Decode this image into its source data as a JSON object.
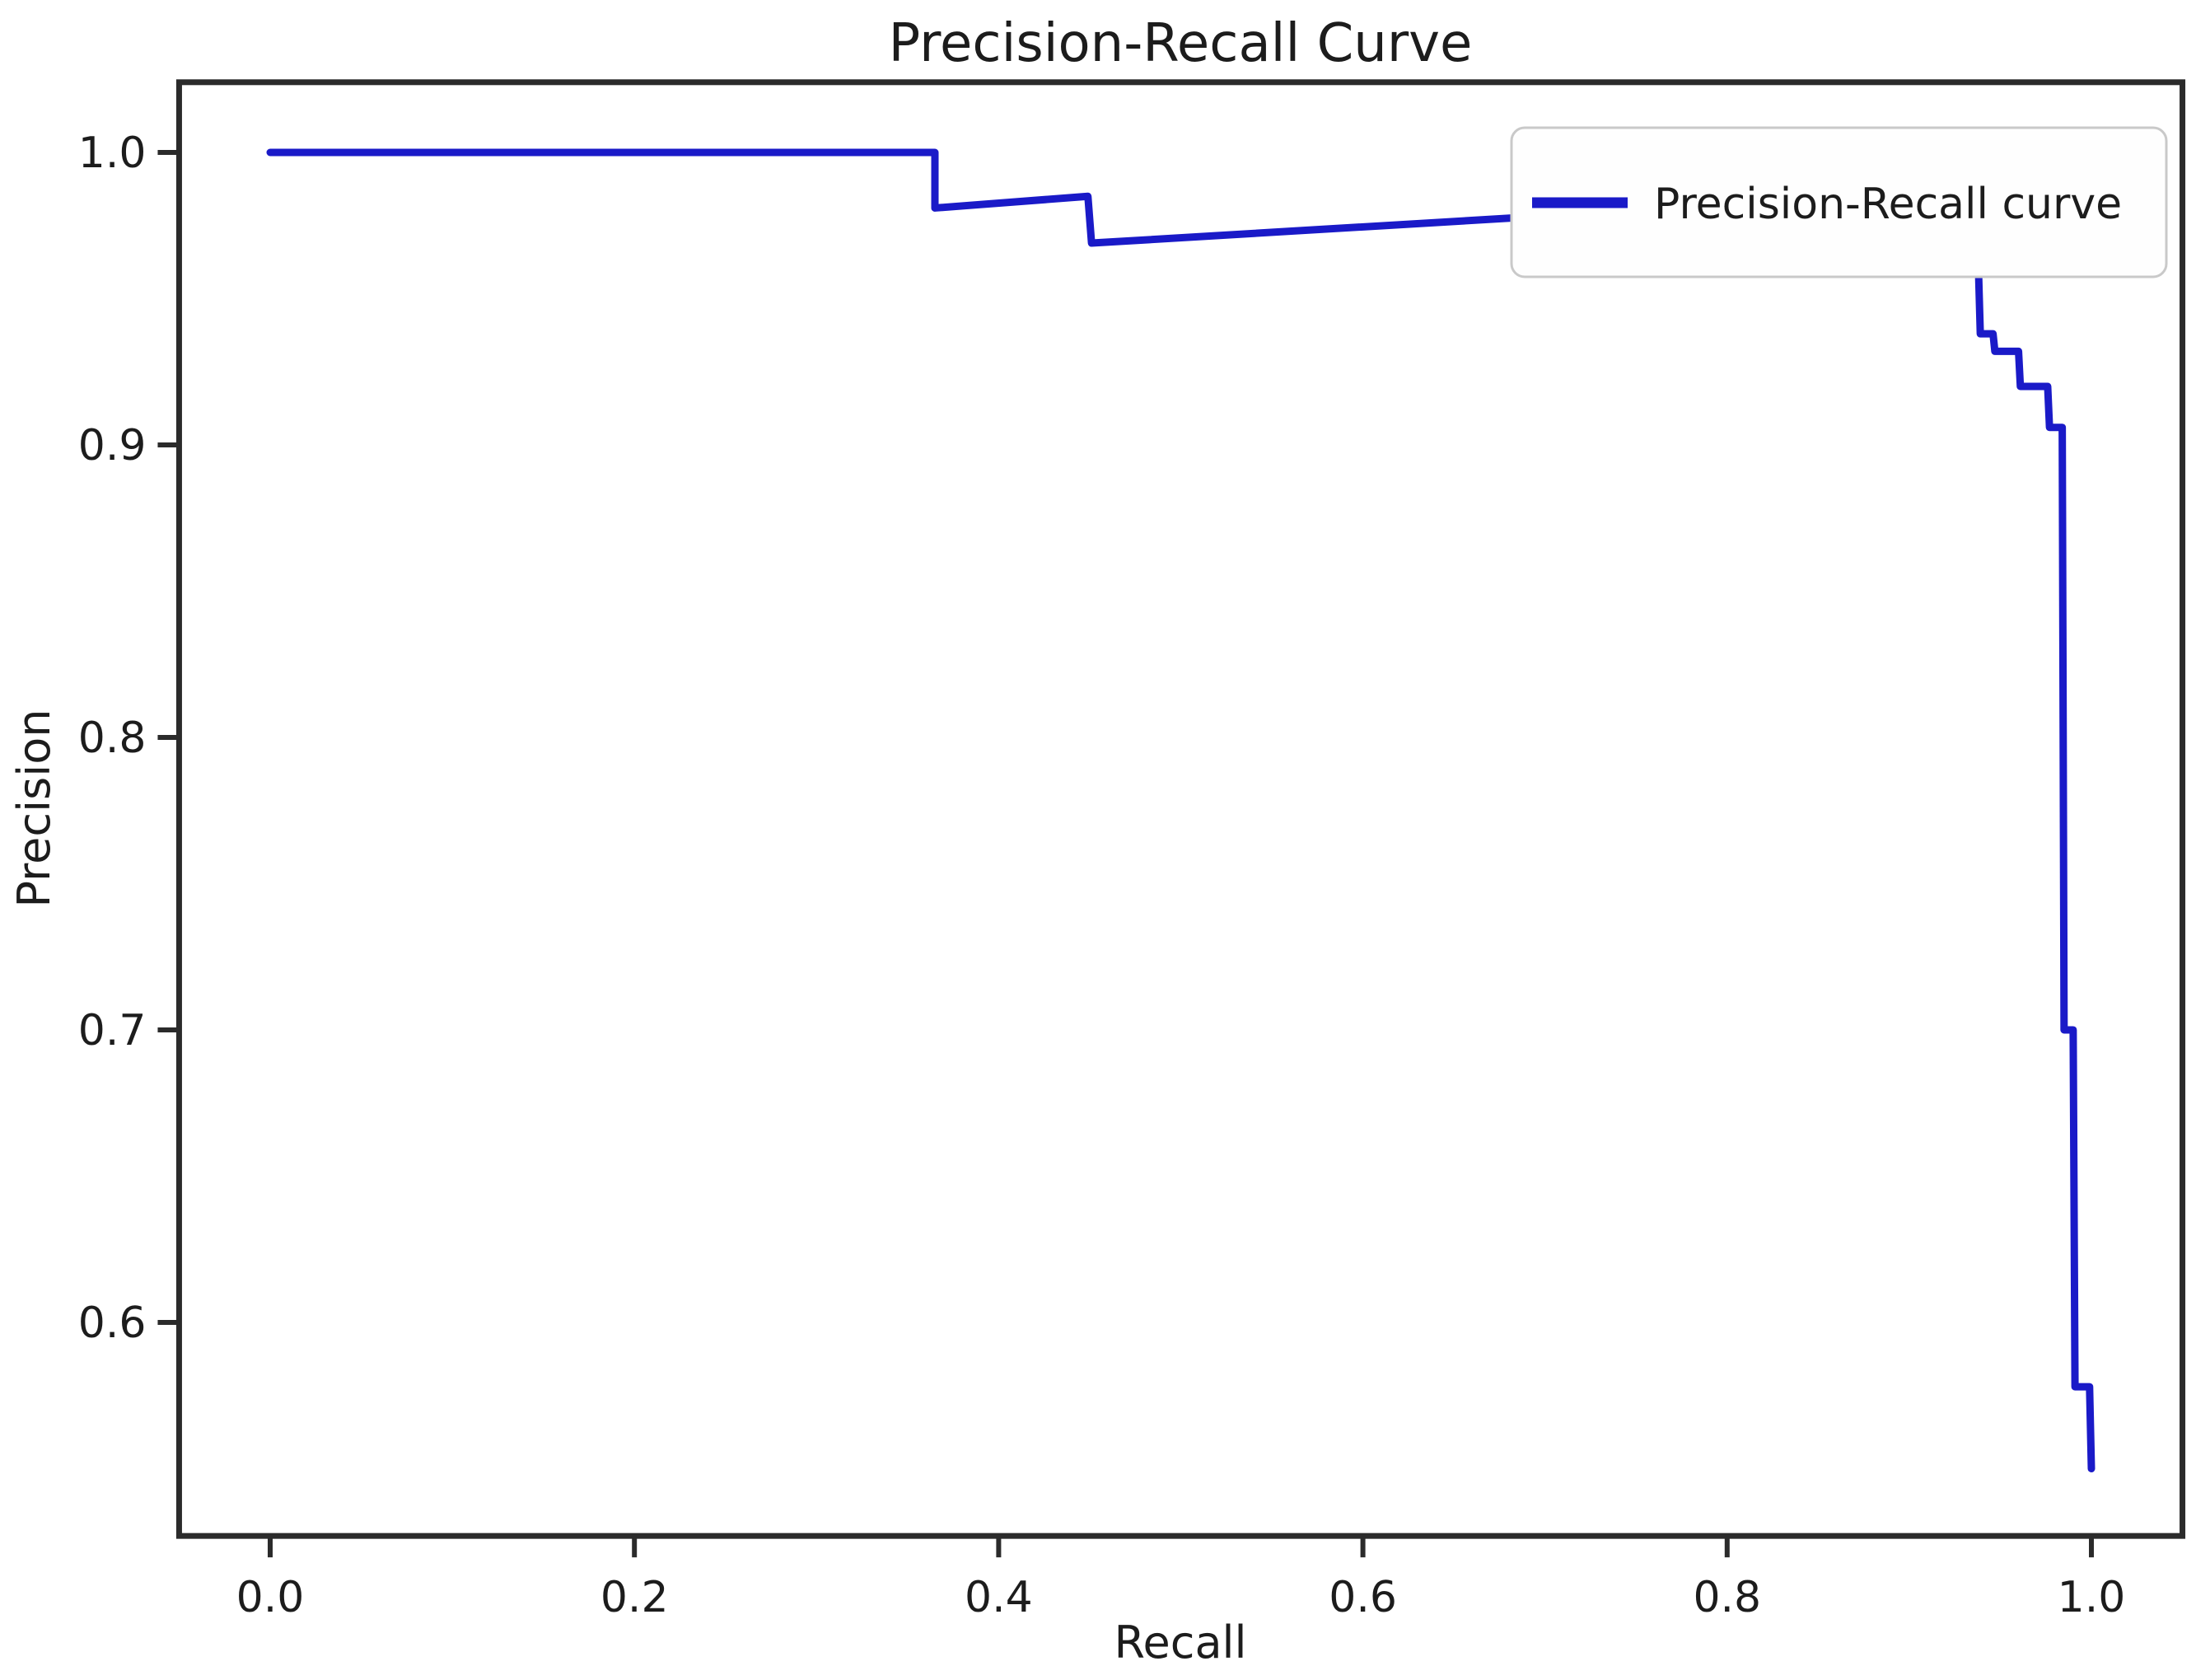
{
  "chart_data": {
    "type": "line",
    "title": "Precision-Recall Curve",
    "xlabel": "Recall",
    "ylabel": "Precision",
    "x_ticks": {
      "labels": [
        "0.0",
        "0.2",
        "0.4",
        "0.6",
        "0.8",
        "1.0"
      ],
      "values": [
        0.0,
        0.2,
        0.4,
        0.6,
        0.8,
        1.0
      ]
    },
    "y_ticks": {
      "labels": [
        "1.0",
        "0.9",
        "0.8",
        "0.7",
        "0.6"
      ],
      "values": [
        1.0,
        0.9,
        0.8,
        0.7,
        0.6
      ]
    },
    "xlim": [
      -0.05,
      1.05
    ],
    "ylim": [
      0.527,
      1.024
    ],
    "grid": false,
    "legend": {
      "position": "upper right",
      "entries": [
        {
          "label": "Precision-Recall curve",
          "color": "#1a1ac8"
        }
      ]
    },
    "series": [
      {
        "name": "Precision-Recall curve",
        "points": [
          [
            0.0,
            1.0
          ],
          [
            0.365,
            1.0
          ],
          [
            0.365,
            0.981
          ],
          [
            0.449,
            0.985
          ],
          [
            0.451,
            0.969
          ],
          [
            0.693,
            0.978
          ],
          [
            0.695,
            0.964
          ],
          [
            0.889,
            0.977
          ],
          [
            0.891,
            0.967
          ],
          [
            0.929,
            0.97
          ],
          [
            0.93,
            0.96
          ],
          [
            0.938,
            0.96
          ],
          [
            0.939,
            0.938
          ],
          [
            0.946,
            0.938
          ],
          [
            0.947,
            0.932
          ],
          [
            0.96,
            0.932
          ],
          [
            0.961,
            0.92
          ],
          [
            0.976,
            0.92
          ],
          [
            0.977,
            0.906
          ],
          [
            0.984,
            0.906
          ],
          [
            0.985,
            0.7
          ],
          [
            0.99,
            0.7
          ],
          [
            0.991,
            0.578
          ],
          [
            0.999,
            0.578
          ],
          [
            1.0,
            0.55
          ]
        ]
      }
    ],
    "colors": {
      "curve": "#1a1ac8",
      "axis": "#2b2b2b",
      "text": "#1c1c1c",
      "legend_border": "#c9c9c9",
      "legend_background": "#fefefe",
      "background": "#ffffff"
    }
  }
}
